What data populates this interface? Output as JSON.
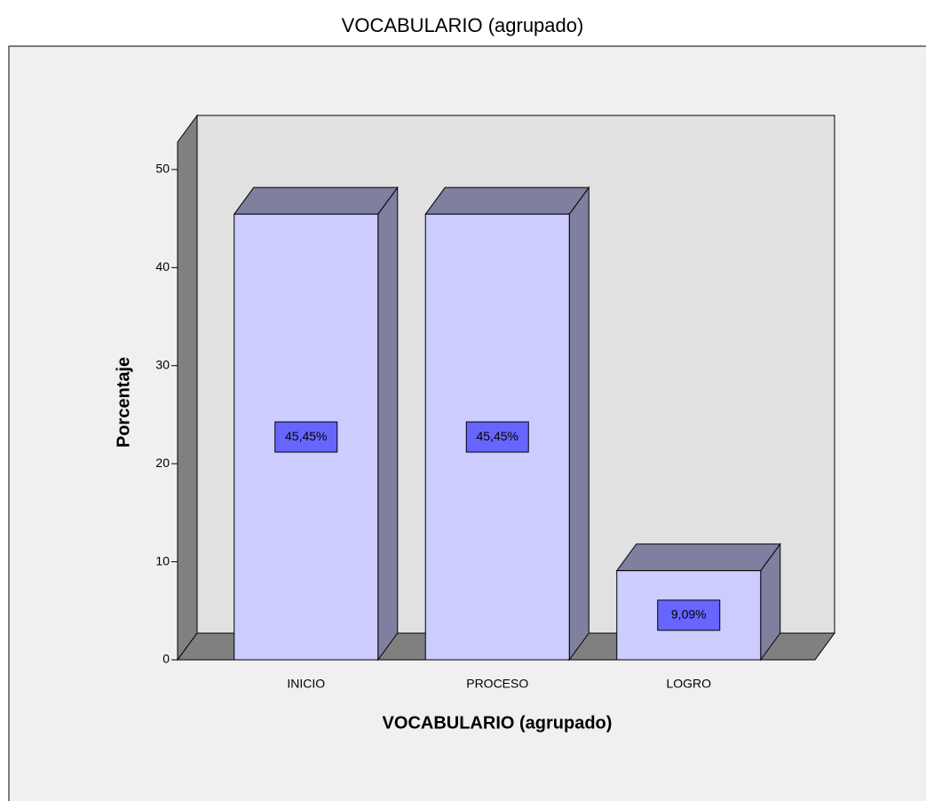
{
  "chart_data": {
    "type": "bar3d",
    "title": "VOCABULARIO (agrupado)",
    "x_label": "VOCABULARIO (agrupado)",
    "y_label": "Porcentaje",
    "categories": [
      "INICIO",
      "PROCESO",
      "LOGRO"
    ],
    "values": [
      45.45,
      45.45,
      9.09
    ],
    "value_labels": [
      "45,45%",
      "45,45%",
      "9,09%"
    ],
    "color": "#ccccff",
    "ylim": [
      0,
      52.8
    ],
    "yticks": [
      0,
      10,
      20,
      30,
      40,
      50
    ]
  }
}
